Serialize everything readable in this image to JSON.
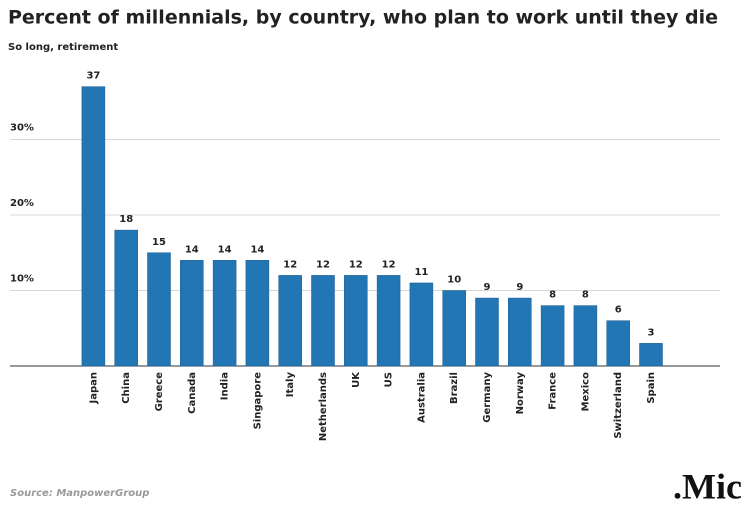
{
  "chart_data": {
    "type": "bar",
    "title": "Percent of millennials, by country, who plan to work until they die",
    "subtitle": "So long, retirement",
    "source": "Source: ManpowerGroup",
    "logo": ".Mic",
    "categories": [
      "Japan",
      "China",
      "Greece",
      "Canada",
      "India",
      "Singapore",
      "Italy",
      "Netherlands",
      "UK",
      "US",
      "Australia",
      "Brazil",
      "Germany",
      "Norway",
      "France",
      "Mexico",
      "Switzerland",
      "Spain"
    ],
    "values": [
      37,
      18,
      15,
      14,
      14,
      14,
      12,
      12,
      12,
      12,
      11,
      10,
      9,
      9,
      8,
      8,
      6,
      3
    ],
    "color": "#2276b4",
    "ylim": [
      0,
      40
    ],
    "yticks": [
      {
        "value": 10,
        "label": "10%"
      },
      {
        "value": 20,
        "label": "20%"
      },
      {
        "value": 30,
        "label": "30%"
      }
    ],
    "grid": true
  }
}
